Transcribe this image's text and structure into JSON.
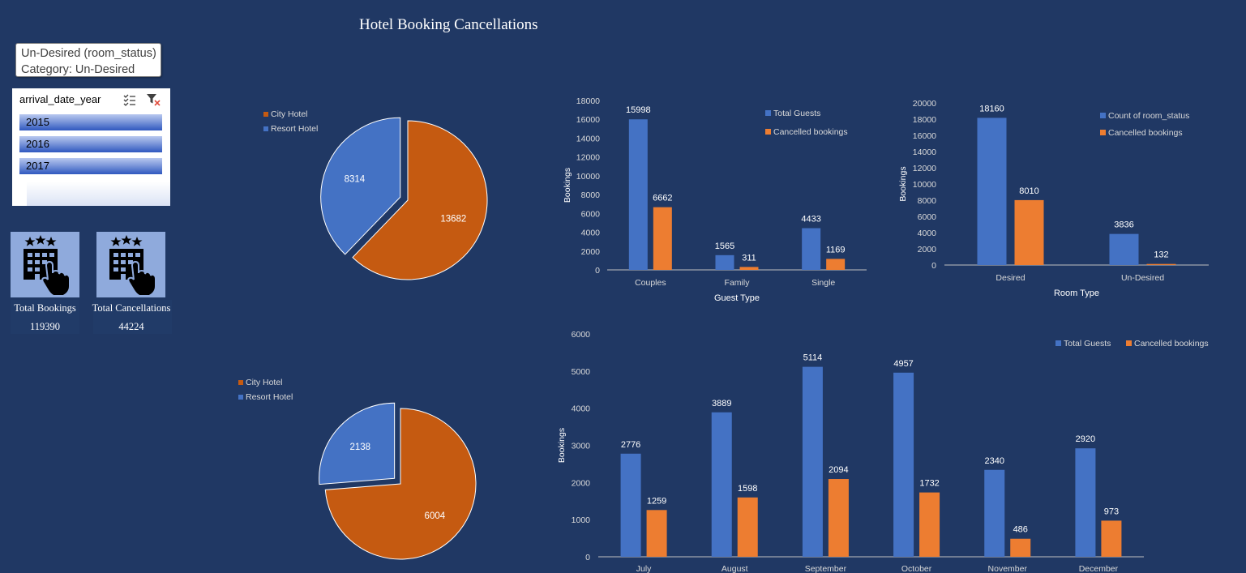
{
  "dashboard": {
    "title": "Hotel Booking Cancellations",
    "tooltip": {
      "line1": "Un-Desired (room_status)",
      "line2": "Category: Un-Desired"
    },
    "slicer": {
      "header": "arrival_date_year",
      "items": [
        {
          "label": "2015"
        },
        {
          "label": "2016"
        },
        {
          "label": "2017"
        }
      ]
    },
    "kpis": [
      {
        "label": "Total Bookings",
        "value": "119390",
        "icon": "hotel-touch-icon"
      },
      {
        "label": "Total Cancellations",
        "value": "44224",
        "icon": "hotel-touch-icon"
      }
    ],
    "colors": {
      "background": "#203864",
      "blue": "#4472c4",
      "orange": "#ed7d31",
      "pie_orange": "#c55a11",
      "axis_text": "#d9d9d9"
    }
  },
  "chart_data": [
    {
      "id": "pie-total",
      "type": "pie",
      "legend": [
        "City Hotel",
        "Resort Hotel"
      ],
      "legend_position": "top-left",
      "slices": [
        {
          "name": "City Hotel",
          "value": 13682,
          "color": "#c55a11"
        },
        {
          "name": "Resort Hotel",
          "value": 8314,
          "color": "#4472c4"
        }
      ]
    },
    {
      "id": "pie-cancelled",
      "type": "pie",
      "legend": [
        "City Hotel",
        "Resort Hotel"
      ],
      "legend_position": "top-left",
      "slices": [
        {
          "name": "City Hotel",
          "value": 6004,
          "color": "#c55a11"
        },
        {
          "name": "Resort Hotel",
          "value": 2138,
          "color": "#4472c4"
        }
      ]
    },
    {
      "id": "bar-guest-type",
      "type": "bar",
      "categories": [
        "Couples",
        "Family",
        "Single"
      ],
      "series": [
        {
          "name": "Total Guests",
          "values": [
            15998,
            1565,
            4433
          ],
          "color": "#4472c4"
        },
        {
          "name": "Cancelled bookings",
          "values": [
            6662,
            311,
            1169
          ],
          "color": "#ed7d31"
        }
      ],
      "xlabel": "Guest Type",
      "ylabel": "Bookings",
      "ylim": [
        0,
        18000
      ],
      "yticks": [
        0,
        2000,
        4000,
        6000,
        8000,
        10000,
        12000,
        14000,
        16000,
        18000
      ],
      "legend_position": "top-right",
      "grid": false
    },
    {
      "id": "bar-room-type",
      "type": "bar",
      "categories": [
        "Desired",
        "Un-Desired"
      ],
      "series": [
        {
          "name": "Count of room_status",
          "values": [
            18160,
            3836
          ],
          "color": "#4472c4"
        },
        {
          "name": "Cancelled bookings",
          "values": [
            8010,
            132
          ],
          "color": "#ed7d31"
        }
      ],
      "xlabel": "Room Type",
      "ylabel": "Bookings",
      "ylim": [
        0,
        20000
      ],
      "yticks": [
        0,
        2000,
        4000,
        6000,
        8000,
        10000,
        12000,
        14000,
        16000,
        18000,
        20000
      ],
      "legend_position": "top-right",
      "grid": false
    },
    {
      "id": "bar-month",
      "type": "bar",
      "categories": [
        "July",
        "August",
        "September",
        "October",
        "November",
        "December"
      ],
      "series": [
        {
          "name": "Total Guests",
          "values": [
            2776,
            3889,
            5114,
            4957,
            2340,
            2920
          ],
          "color": "#4472c4"
        },
        {
          "name": "Cancelled bookings",
          "values": [
            1259,
            1598,
            2094,
            1732,
            486,
            973
          ],
          "color": "#ed7d31"
        }
      ],
      "xlabel": "",
      "ylabel": "Bookings",
      "ylim": [
        0,
        6000
      ],
      "yticks": [
        0,
        1000,
        2000,
        3000,
        4000,
        5000,
        6000
      ],
      "legend_position": "top-right",
      "grid": false
    }
  ]
}
